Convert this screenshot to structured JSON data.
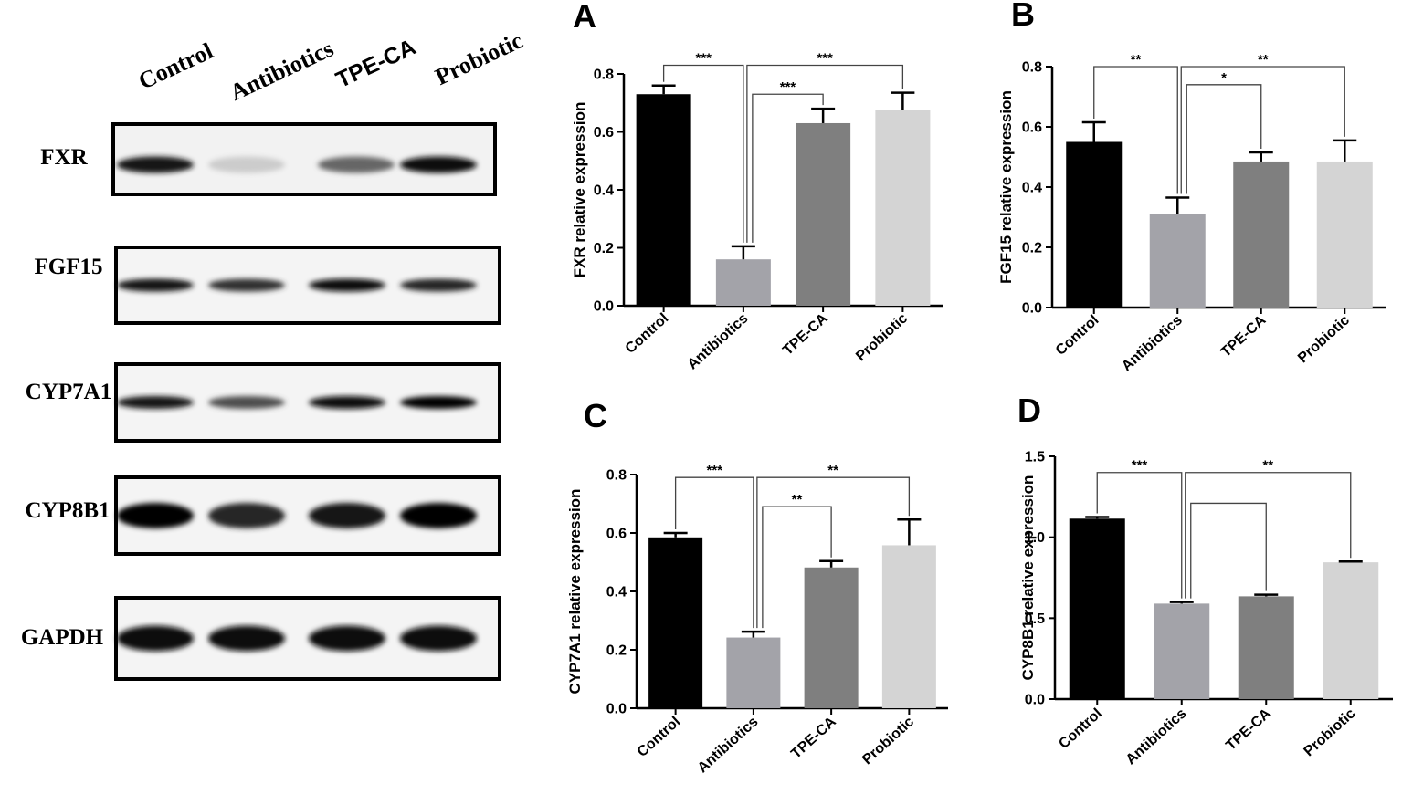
{
  "blot": {
    "lanes": [
      "Control",
      "Antibiotics",
      "TPE-CA",
      "Probiotic"
    ],
    "rows": [
      {
        "label": "FXR",
        "bands": [
          0.9,
          0.2,
          0.6,
          0.95
        ]
      },
      {
        "label": "FGF15",
        "bands": [
          0.9,
          0.8,
          0.95,
          0.85
        ]
      },
      {
        "label": "CYP7A1",
        "bands": [
          0.9,
          0.7,
          0.95,
          1.0
        ]
      },
      {
        "label": "CYP8B1",
        "bands": [
          1.0,
          0.85,
          0.9,
          1.0
        ]
      },
      {
        "label": "GAPDH",
        "bands": [
          0.95,
          0.95,
          0.95,
          0.95
        ]
      }
    ]
  },
  "chart_data": [
    {
      "type": "bar",
      "panel": "A",
      "categories": [
        "Control",
        "Antibiotics",
        "TPE-CA",
        "Probiotic"
      ],
      "values": [
        0.73,
        0.16,
        0.63,
        0.675
      ],
      "errors": [
        0.03,
        0.045,
        0.05,
        0.06
      ],
      "colors": [
        "#000000",
        "#a3a3a9",
        "#7f7f7f",
        "#d4d4d4"
      ],
      "ylabel": "FXR relative expression",
      "ylim": [
        0,
        0.8
      ],
      "yticks": [
        "0.0",
        "0.2",
        "0.4",
        "0.6",
        "0.8"
      ],
      "brackets": [
        {
          "from": 0,
          "to": 1,
          "level": 0.83,
          "label": "***"
        },
        {
          "from": 1,
          "to": 3,
          "level": 0.83,
          "label": "***"
        },
        {
          "from": 1,
          "to": 2,
          "level": 0.73,
          "label": "***"
        }
      ]
    },
    {
      "type": "bar",
      "panel": "B",
      "categories": [
        "Control",
        "Antibiotics",
        "TPE-CA",
        "Probiotic"
      ],
      "values": [
        0.55,
        0.31,
        0.485,
        0.485
      ],
      "errors": [
        0.065,
        0.055,
        0.03,
        0.07
      ],
      "colors": [
        "#000000",
        "#a3a3a9",
        "#7f7f7f",
        "#d4d4d4"
      ],
      "ylabel": "FGF15 relative expression",
      "ylim": [
        0,
        0.8
      ],
      "yticks": [
        "0.0",
        "0.2",
        "0.4",
        "0.6",
        "0.8"
      ],
      "brackets": [
        {
          "from": 0,
          "to": 1,
          "level": 0.8,
          "label": "**"
        },
        {
          "from": 1,
          "to": 3,
          "level": 0.8,
          "label": "**"
        },
        {
          "from": 1,
          "to": 2,
          "level": 0.74,
          "label": "*"
        }
      ]
    },
    {
      "type": "bar",
      "panel": "C",
      "categories": [
        "Control",
        "Antibiotics",
        "TPE-CA",
        "Probiotic"
      ],
      "values": [
        0.585,
        0.242,
        0.482,
        0.558
      ],
      "errors": [
        0.015,
        0.02,
        0.022,
        0.088
      ],
      "colors": [
        "#000000",
        "#a3a3a9",
        "#7f7f7f",
        "#d4d4d4"
      ],
      "ylabel": "CYP7A1 relative expression",
      "ylim": [
        0,
        0.8
      ],
      "yticks": [
        "0.0",
        "0.2",
        "0.4",
        "0.6",
        "0.8"
      ],
      "brackets": [
        {
          "from": 0,
          "to": 1,
          "level": 0.79,
          "label": "***"
        },
        {
          "from": 1,
          "to": 3,
          "level": 0.79,
          "label": "**"
        },
        {
          "from": 1,
          "to": 2,
          "level": 0.69,
          "label": "**"
        }
      ]
    },
    {
      "type": "bar",
      "panel": "D",
      "categories": [
        "Control",
        "Antibiotics",
        "TPE-CA",
        "Probiotic"
      ],
      "values": [
        1.115,
        0.59,
        0.635,
        0.845
      ],
      "errors": [
        0.01,
        0.01,
        0.01,
        0.005
      ],
      "colors": [
        "#000000",
        "#a3a3a9",
        "#7f7f7f",
        "#d4d4d4"
      ],
      "ylabel": "CYP8B1 relative expression",
      "ylim": [
        0,
        1.5
      ],
      "yticks": [
        "0.0",
        "0.5",
        "1.0",
        "1.5"
      ],
      "brackets": [
        {
          "from": 0,
          "to": 1,
          "level": 1.4,
          "label": "***"
        },
        {
          "from": 1,
          "to": 3,
          "level": 1.4,
          "label": "**"
        },
        {
          "from": 1,
          "to": 2,
          "level": 1.21,
          "label": ""
        }
      ]
    }
  ]
}
